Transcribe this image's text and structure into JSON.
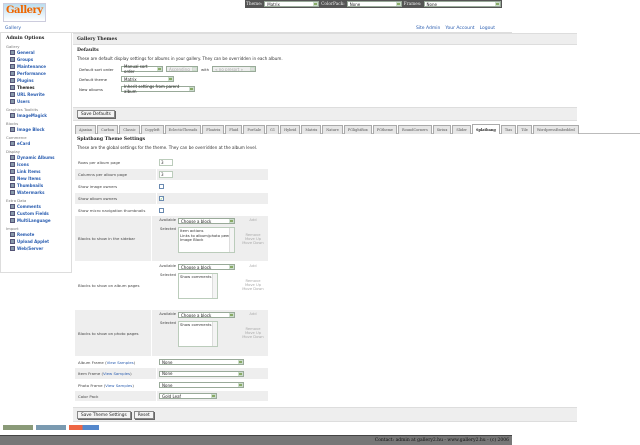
{
  "topbar": {
    "theme_label": "Theme:",
    "theme_value": "Matrix",
    "colorpack_label": "ColorPack:",
    "colorpack_value": "None",
    "frames_label": "Frames:",
    "frames_value": "None"
  },
  "logo_text": "Gallery",
  "breadcrumb": "Gallery",
  "user_links": [
    "Site Admin",
    "Your Account",
    "Logout"
  ],
  "sidebar": {
    "title": "Admin Options",
    "groups": [
      {
        "name": "Gallery",
        "items": [
          "General",
          "Groups",
          "Maintenance",
          "Performance",
          "Plugins",
          "Themes",
          "URL Rewrite",
          "Users"
        ]
      },
      {
        "name": "Graphics Toolkits",
        "items": [
          "ImageMagick"
        ]
      },
      {
        "name": "Blocks",
        "items": [
          "Image Block"
        ]
      },
      {
        "name": "Commerce",
        "items": [
          "eCard"
        ]
      },
      {
        "name": "Display",
        "items": [
          "Dynamic Albums",
          "Icons",
          "Link Items",
          "New Items",
          "Thumbnails",
          "Watermarks"
        ]
      },
      {
        "name": "Extra Data",
        "items": [
          "Comments",
          "Custom Fields",
          "MultiLanguage"
        ]
      },
      {
        "name": "Import",
        "items": [
          "Remote",
          "Upload Applet",
          "Web/Server"
        ]
      }
    ],
    "current": "Themes"
  },
  "page_title": "Gallery Themes",
  "defaults": {
    "heading": "Defaults",
    "description": "These are default display settings for albums in your gallery. They can be overridden in each album.",
    "sort_label": "Default sort order",
    "sort_value": "Manual sort order",
    "sort_dir": "Ascending",
    "with_label": "with",
    "with_value": "« no presort »",
    "theme_label": "Default theme",
    "theme_value": "Matrix",
    "new_label": "New albums",
    "new_value": "Inherit settings from parent album",
    "save": "Save Defaults"
  },
  "tabs": [
    "Ajaxian",
    "Carbon",
    "Classic",
    "Copyleft",
    "EclecticThreads",
    "Floatrix",
    "Fluid",
    "PorSale",
    "G1",
    "Hybrid",
    "Matrix",
    "Nature",
    "PGlightBox",
    "PGtheme",
    "RoundCorners",
    "Siriux",
    "Slider",
    "Splatbang",
    "Tias",
    "Tile",
    "WordpressEmbedded"
  ],
  "active_tab": "Splatbang",
  "theme_settings": {
    "heading": "Splatbang Theme Settings",
    "description": "These are the global settings for the theme. They can be overridden at the album level.",
    "rows_label": "Rows per album page",
    "rows_value": "3",
    "cols_label": "Columns per album page",
    "cols_value": "3",
    "image_owners_label": "Show image owners",
    "image_owners": false,
    "album_owners_label": "Show album owners",
    "album_owners": true,
    "micro_label": "Show micro navigation thumbnails",
    "micro": false,
    "available_label": "Available",
    "selected_label": "Selected",
    "choose": "Choose a block",
    "add": "Add",
    "remove": "Remove",
    "move_up": "Move Up",
    "move_down": "Move Down",
    "sidebar_blocks_label": "Blocks to show in the sidebar",
    "sidebar_blocks": [
      "Item actions",
      "Links to album/photo peers",
      "Image Block"
    ],
    "album_blocks_label": "Blocks to show on album pages",
    "album_blocks": [
      "Show comments"
    ],
    "photo_blocks_label": "Blocks to show on photo pages",
    "photo_blocks": [
      "Show comments"
    ],
    "view_samples": "View Samples",
    "album_frame_label": "Album Frame",
    "album_frame": "None",
    "item_frame_label": "Item Frame",
    "item_frame": "None",
    "photo_frame_label": "Photo Frame",
    "photo_frame": "None",
    "colorpack_label": "Color Pack",
    "colorpack": "Gold Leaf",
    "save": "Save Theme Settings",
    "reset": "Reset"
  },
  "footer": "Contact: admin at gallery2.hu - www.gallery2.hu - (c) 2006"
}
